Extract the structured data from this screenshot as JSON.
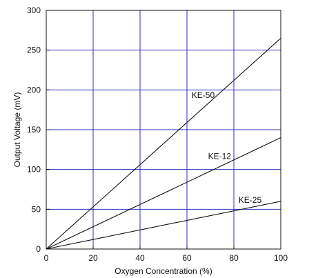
{
  "chart_data": {
    "type": "line",
    "title": "",
    "xlabel": "Oxygen Concentration (%)",
    "ylabel": "Output Voltage (mV)",
    "xlim": [
      0,
      100
    ],
    "ylim": [
      0,
      300
    ],
    "xticks": [
      0,
      20,
      40,
      60,
      80,
      100
    ],
    "yticks": [
      0,
      50,
      100,
      150,
      200,
      250,
      300
    ],
    "grid": true,
    "grid_color": "#2b2bbf",
    "line_color": "#111111",
    "series": [
      {
        "name": "KE-50",
        "x": [
          0,
          100
        ],
        "y": [
          0,
          265
        ],
        "label_at": [
          62,
          190
        ]
      },
      {
        "name": "KE-12",
        "x": [
          0,
          100
        ],
        "y": [
          0,
          140
        ],
        "label_at": [
          69,
          113
        ]
      },
      {
        "name": "KE-25",
        "x": [
          0,
          100
        ],
        "y": [
          0,
          60
        ],
        "label_at": [
          82,
          58
        ]
      }
    ]
  }
}
